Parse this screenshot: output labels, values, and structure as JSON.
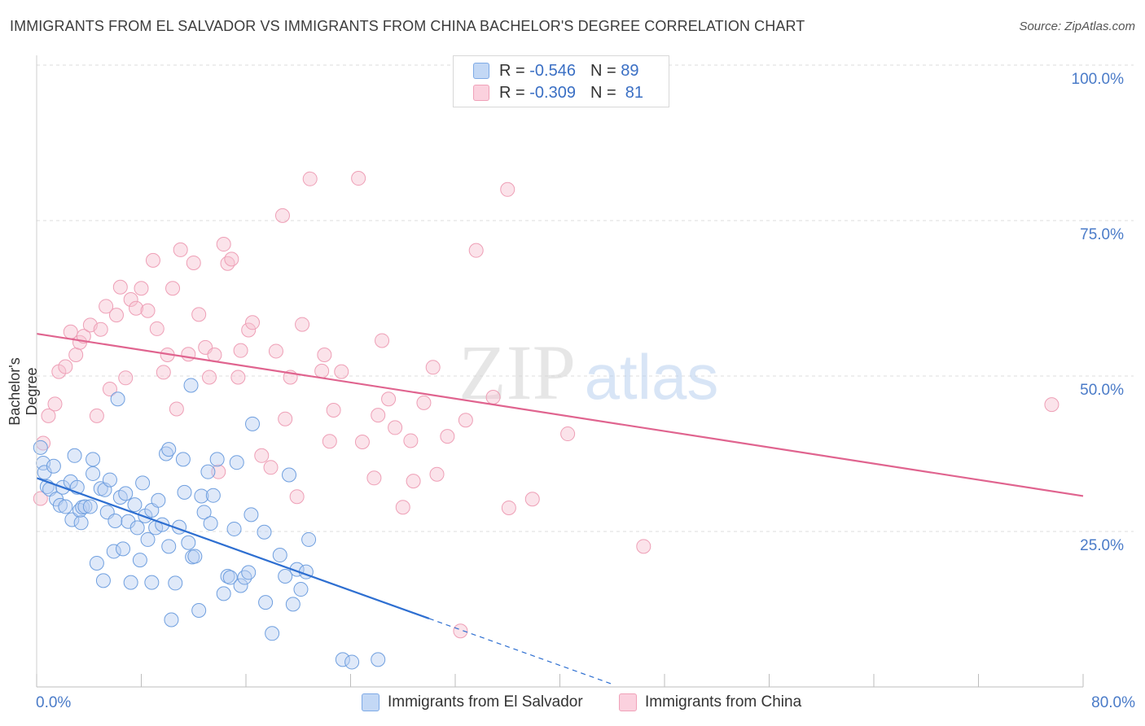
{
  "title": "IMMIGRANTS FROM EL SALVADOR VS IMMIGRANTS FROM CHINA BACHELOR'S DEGREE CORRELATION CHART",
  "source": "Source: ZipAtlas.com",
  "watermark": {
    "zip": "ZIP",
    "atlas": "atlas"
  },
  "legend": {
    "r_label": "R =",
    "n_label": "N =",
    "rows": [
      {
        "r": "-0.546",
        "n": "89",
        "color": "#a9c8f0"
      },
      {
        "r": "-0.309",
        "n": "81",
        "color": "#f5b6c8"
      }
    ]
  },
  "axes": {
    "x_min_label": "0.0%",
    "x_max_label": "80.0%",
    "y_labels": [
      "100.0%",
      "75.0%",
      "50.0%",
      "25.0%"
    ],
    "ylabel": "Bachelor's Degree"
  },
  "series_legend": {
    "blue": "Immigrants from El Salvador",
    "pink": "Immigrants from China"
  },
  "chart_data": {
    "type": "scatter",
    "title": "IMMIGRANTS FROM EL SALVADOR VS IMMIGRANTS FROM CHINA BACHELOR'S DEGREE CORRELATION CHART",
    "xlabel": "",
    "ylabel": "Bachelor's Degree",
    "xlim": [
      0,
      80
    ],
    "ylim": [
      0,
      100
    ],
    "series": [
      {
        "name": "Immigrants from El Salvador",
        "color": "#6a9fe0",
        "trend": {
          "x0": 0,
          "y0": 33.6,
          "x1": 30,
          "y1": 11.0,
          "dash_to_x": 44
        },
        "points": [
          [
            0.3,
            38.5
          ],
          [
            0.5,
            36
          ],
          [
            0.6,
            34.5
          ],
          [
            0.8,
            32.2
          ],
          [
            1.0,
            31.8
          ],
          [
            1.3,
            35.5
          ],
          [
            1.5,
            30.2
          ],
          [
            1.8,
            29.2
          ],
          [
            2.0,
            32.1
          ],
          [
            2.2,
            29.0
          ],
          [
            2.6,
            33.0
          ],
          [
            2.7,
            26.9
          ],
          [
            2.9,
            37.2
          ],
          [
            3.1,
            32.1
          ],
          [
            3.3,
            28.4
          ],
          [
            3.4,
            26.4
          ],
          [
            3.5,
            28.9
          ],
          [
            3.7,
            29.0
          ],
          [
            4.1,
            29.0
          ],
          [
            4.3,
            36.6
          ],
          [
            4.3,
            34.3
          ],
          [
            4.6,
            19.9
          ],
          [
            4.9,
            31.9
          ],
          [
            5.1,
            17.1
          ],
          [
            5.2,
            31.7
          ],
          [
            5.4,
            28.1
          ],
          [
            5.6,
            33.3
          ],
          [
            5.9,
            21.8
          ],
          [
            6.0,
            26.7
          ],
          [
            6.2,
            46.3
          ],
          [
            6.4,
            30.5
          ],
          [
            6.6,
            22.2
          ],
          [
            6.8,
            31.1
          ],
          [
            7.0,
            26.6
          ],
          [
            7.2,
            16.8
          ],
          [
            7.5,
            29.3
          ],
          [
            7.7,
            25.6
          ],
          [
            7.9,
            20.4
          ],
          [
            8.1,
            32.8
          ],
          [
            8.3,
            27.5
          ],
          [
            8.5,
            23.7
          ],
          [
            8.8,
            16.8
          ],
          [
            8.8,
            28.4
          ],
          [
            9.1,
            25.6
          ],
          [
            9.3,
            30.0
          ],
          [
            9.6,
            26.1
          ],
          [
            9.9,
            37.5
          ],
          [
            10.1,
            38.2
          ],
          [
            10.1,
            22.6
          ],
          [
            10.3,
            10.8
          ],
          [
            10.6,
            16.7
          ],
          [
            10.9,
            25.7
          ],
          [
            11.2,
            36.6
          ],
          [
            11.3,
            31.3
          ],
          [
            11.6,
            23.2
          ],
          [
            11.8,
            48.5
          ],
          [
            11.9,
            20.9
          ],
          [
            12.1,
            21.0
          ],
          [
            12.4,
            12.3
          ],
          [
            12.6,
            30.7
          ],
          [
            12.8,
            28.1
          ],
          [
            13.1,
            34.6
          ],
          [
            13.3,
            26.3
          ],
          [
            13.5,
            30.8
          ],
          [
            13.8,
            36.6
          ],
          [
            14.3,
            15.0
          ],
          [
            14.6,
            17.8
          ],
          [
            14.8,
            17.6
          ],
          [
            15.1,
            25.4
          ],
          [
            15.3,
            36.1
          ],
          [
            15.6,
            16.3
          ],
          [
            15.9,
            17.6
          ],
          [
            16.2,
            18.4
          ],
          [
            16.4,
            27.7
          ],
          [
            16.5,
            42.3
          ],
          [
            17.4,
            24.9
          ],
          [
            17.5,
            13.6
          ],
          [
            18.0,
            8.6
          ],
          [
            18.6,
            21.2
          ],
          [
            19.0,
            17.8
          ],
          [
            19.3,
            34.1
          ],
          [
            19.6,
            13.3
          ],
          [
            19.9,
            18.9
          ],
          [
            20.2,
            15.7
          ],
          [
            20.6,
            18.5
          ],
          [
            20.8,
            23.7
          ],
          [
            23.4,
            4.4
          ],
          [
            24.1,
            4.0
          ],
          [
            26.1,
            4.4
          ]
        ]
      },
      {
        "name": "Immigrants from China",
        "color": "#f09ab4",
        "trend": {
          "x0": 0,
          "y0": 56.8,
          "x1": 80,
          "y1": 30.7
        },
        "points": [
          [
            0.3,
            30.3
          ],
          [
            0.5,
            39.2
          ],
          [
            0.9,
            43.6
          ],
          [
            1.4,
            45.5
          ],
          [
            1.7,
            50.7
          ],
          [
            2.2,
            51.5
          ],
          [
            2.6,
            57.1
          ],
          [
            3.0,
            53.4
          ],
          [
            3.3,
            55.4
          ],
          [
            3.6,
            56.4
          ],
          [
            4.1,
            58.2
          ],
          [
            4.6,
            43.6
          ],
          [
            4.9,
            57.5
          ],
          [
            5.3,
            61.2
          ],
          [
            5.6,
            47.9
          ],
          [
            6.1,
            59.8
          ],
          [
            6.4,
            64.3
          ],
          [
            6.8,
            49.7
          ],
          [
            7.2,
            62.3
          ],
          [
            7.6,
            60.9
          ],
          [
            8.0,
            64.1
          ],
          [
            8.5,
            60.5
          ],
          [
            8.9,
            68.6
          ],
          [
            9.2,
            57.6
          ],
          [
            9.7,
            50.6
          ],
          [
            10.0,
            53.4
          ],
          [
            10.4,
            64.1
          ],
          [
            10.7,
            44.7
          ],
          [
            11.0,
            70.3
          ],
          [
            11.6,
            53.5
          ],
          [
            12.0,
            68.2
          ],
          [
            12.4,
            59.9
          ],
          [
            12.9,
            54.6
          ],
          [
            13.2,
            49.8
          ],
          [
            13.6,
            53.4
          ],
          [
            13.9,
            34.6
          ],
          [
            14.3,
            71.2
          ],
          [
            14.6,
            68.1
          ],
          [
            14.9,
            68.8
          ],
          [
            15.4,
            49.8
          ],
          [
            15.6,
            54.1
          ],
          [
            16.2,
            57.4
          ],
          [
            16.5,
            58.6
          ],
          [
            17.2,
            37.2
          ],
          [
            17.9,
            35.3
          ],
          [
            18.3,
            54.0
          ],
          [
            18.8,
            75.8
          ],
          [
            19.0,
            43.1
          ],
          [
            19.4,
            49.8
          ],
          [
            19.9,
            30.6
          ],
          [
            20.3,
            58.3
          ],
          [
            20.9,
            81.7
          ],
          [
            21.8,
            50.8
          ],
          [
            22.0,
            53.4
          ],
          [
            22.4,
            39.5
          ],
          [
            22.7,
            44.5
          ],
          [
            23.3,
            50.7
          ],
          [
            24.6,
            81.8
          ],
          [
            24.9,
            39.4
          ],
          [
            25.8,
            33.6
          ],
          [
            26.1,
            43.7
          ],
          [
            26.4,
            55.7
          ],
          [
            26.9,
            46.3
          ],
          [
            27.4,
            41.7
          ],
          [
            28.0,
            28.9
          ],
          [
            28.6,
            39.6
          ],
          [
            28.8,
            33.1
          ],
          [
            29.6,
            45.7
          ],
          [
            30.3,
            51.4
          ],
          [
            30.6,
            34.2
          ],
          [
            31.4,
            40.3
          ],
          [
            32.4,
            9.0
          ],
          [
            32.8,
            42.9
          ],
          [
            33.6,
            70.2
          ],
          [
            34.9,
            46.6
          ],
          [
            36.0,
            80.0
          ],
          [
            36.1,
            28.8
          ],
          [
            37.9,
            30.2
          ],
          [
            40.6,
            40.7
          ],
          [
            46.4,
            22.6
          ],
          [
            77.6,
            45.4
          ]
        ]
      }
    ]
  }
}
